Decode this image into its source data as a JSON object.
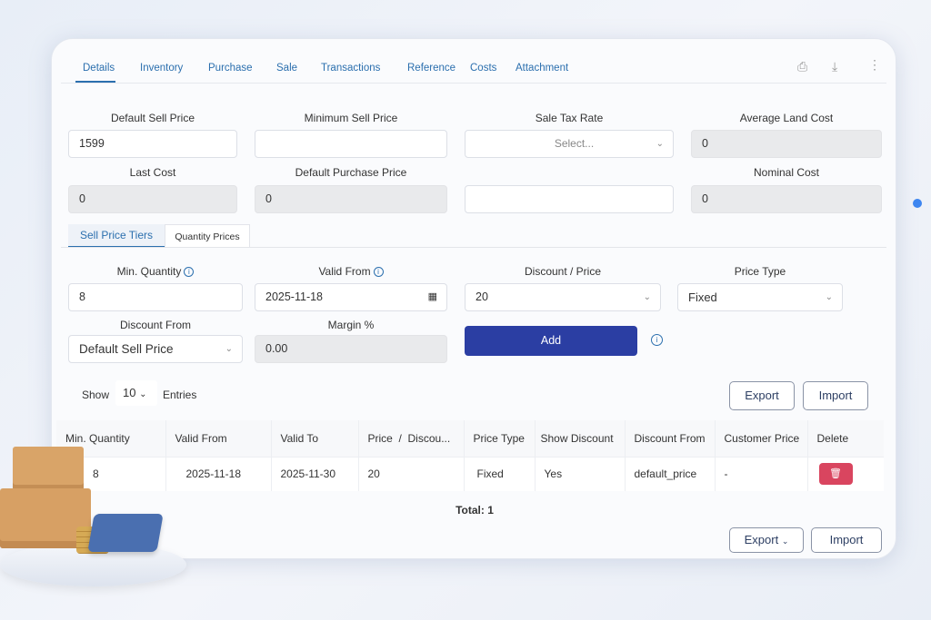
{
  "tabs": [
    "Details",
    "Inventory",
    "Purchase",
    "Sale",
    "Transactions",
    "Reference",
    "Costs",
    "Attachment"
  ],
  "header_icons": [
    "print-icon",
    "download-icon",
    "more-vertical-icon"
  ],
  "fields": {
    "default_sell_price": {
      "label": "Default Sell Price",
      "value": "1599"
    },
    "minimum_sell_price": {
      "label": "Minimum Sell Price",
      "value": ""
    },
    "sale_tax_rate": {
      "label": "Sale Tax Rate",
      "placeholder": "Select..."
    },
    "average_land_cost": {
      "label": "Average Land Cost",
      "value": "0"
    },
    "last_cost": {
      "label": "Last Cost",
      "value": "0"
    },
    "default_purchase_price": {
      "label": "Default Purchase Price",
      "value": "0"
    },
    "nominal_cost": {
      "label": "Nominal Cost",
      "value": "0"
    }
  },
  "subtabs": [
    "Sell Price Tiers",
    "Quantity Prices"
  ],
  "tier_form": {
    "min_quantity": {
      "label": "Min. Quantity",
      "value": "8"
    },
    "valid_from": {
      "label": "Valid From",
      "value": "2025-11-18"
    },
    "discount_price": {
      "label": "Discount / Price",
      "value": "20"
    },
    "price_type": {
      "label": "Price Type",
      "value": "Fixed"
    },
    "discount_from": {
      "label": "Discount From",
      "value": "Default Sell Price"
    },
    "margin": {
      "label": "Margin %",
      "value": "0.00"
    },
    "add_label": "Add"
  },
  "table_controls": {
    "show": "Show",
    "entries_value": "10",
    "entries": "Entries",
    "export": "Export",
    "import": "Import"
  },
  "table": {
    "columns": [
      "Min. Quantity",
      "Valid From",
      "Valid To",
      "Price  /  Discou...",
      "Price Type",
      "Show Discount",
      "Discount From",
      "Customer Price",
      "Delete"
    ],
    "rows": [
      [
        "8",
        "2025-11-18",
        "2025-11-30",
        "20",
        "Fixed",
        "Yes",
        "default_price",
        "-"
      ]
    ],
    "total": "Total: 1"
  },
  "footer": {
    "export": "Export",
    "import": "Import"
  },
  "colors": {
    "accent": "#2b3ea3",
    "link": "#2b6fae",
    "delete": "#d9455f"
  }
}
